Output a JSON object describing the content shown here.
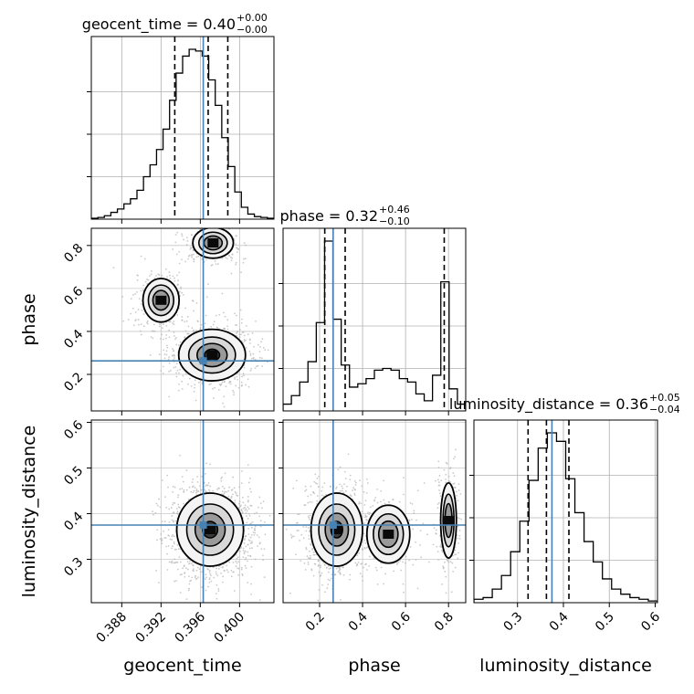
{
  "chart_data": {
    "type": "corner",
    "parameters": [
      "geocent_time",
      "phase",
      "luminosity_distance"
    ],
    "axis_labels": {
      "geocent_time": "geocent_time",
      "phase": "phase",
      "luminosity_distance": "luminosity_distance"
    },
    "ranges": {
      "geocent_time": [
        0.3849,
        0.4035
      ],
      "phase": [
        0.03,
        0.88
      ],
      "luminosity_distance": [
        0.205,
        0.605
      ]
    },
    "ticks": {
      "geocent_time": [
        "0.388",
        "0.392",
        "0.396",
        "0.400"
      ],
      "phase": [
        "0.2",
        "0.4",
        "0.6",
        "0.8"
      ],
      "luminosity_distance": [
        "0.3",
        "0.4",
        "0.5",
        "0.6"
      ]
    },
    "truths": {
      "geocent_time": 0.3963,
      "phase": 0.263,
      "luminosity_distance": 0.375
    },
    "titles": {
      "geocent_time": {
        "name": "geocent_time",
        "median": "0.40",
        "plus": "+0.00",
        "minus": "−0.00"
      },
      "phase": {
        "name": "phase",
        "median": "0.32",
        "plus": "+0.46",
        "minus": "−0.10"
      },
      "luminosity_distance": {
        "name": "luminosity_distance",
        "median": "0.36",
        "plus": "+0.05",
        "minus": "−0.04"
      }
    },
    "quantiles": {
      "geocent_time": [
        0.3934,
        0.3968,
        0.3988
      ],
      "phase": [
        0.224,
        0.319,
        0.78
      ],
      "luminosity_distance": [
        0.323,
        0.363,
        0.412
      ]
    },
    "histograms": {
      "geocent_time": [
        0.005,
        0.01,
        0.02,
        0.04,
        0.06,
        0.09,
        0.12,
        0.17,
        0.25,
        0.32,
        0.41,
        0.53,
        0.7,
        0.86,
        0.96,
        1.0,
        0.99,
        0.96,
        0.82,
        0.67,
        0.48,
        0.31,
        0.16,
        0.07,
        0.03,
        0.015,
        0.01,
        0.005
      ],
      "phase": [
        0.04,
        0.09,
        0.17,
        0.29,
        0.52,
        1.0,
        0.54,
        0.27,
        0.14,
        0.16,
        0.19,
        0.24,
        0.25,
        0.24,
        0.19,
        0.17,
        0.1,
        0.06,
        0.21,
        0.76,
        0.13,
        0.04
      ],
      "luminosity_distance": [
        0.02,
        0.03,
        0.08,
        0.16,
        0.3,
        0.48,
        0.72,
        0.91,
        1.0,
        0.95,
        0.73,
        0.53,
        0.36,
        0.24,
        0.14,
        0.08,
        0.05,
        0.03,
        0.02,
        0.01
      ]
    },
    "density_modes": {
      "geocent_time_phase": [
        {
          "x": 0.3973,
          "y": 0.812,
          "sx": 0.0011,
          "sy": 0.038,
          "w": 0.26
        },
        {
          "x": 0.392,
          "y": 0.545,
          "sx": 0.001,
          "sy": 0.055,
          "w": 0.2
        },
        {
          "x": 0.3972,
          "y": 0.29,
          "sx": 0.0017,
          "sy": 0.06,
          "w": 0.54
        }
      ],
      "geocent_time_luminosity_distance": [
        {
          "x": 0.397,
          "y": 0.365,
          "sx": 0.0017,
          "sy": 0.04,
          "w": 1.0
        }
      ],
      "phase_luminosity_distance": [
        {
          "x": 0.28,
          "y": 0.365,
          "sx": 0.06,
          "sy": 0.04,
          "w": 0.62
        },
        {
          "x": 0.52,
          "y": 0.355,
          "sx": 0.055,
          "sy": 0.035,
          "w": 0.18
        },
        {
          "x": 0.8,
          "y": 0.385,
          "sx": 0.02,
          "sy": 0.045,
          "w": 0.2
        }
      ]
    },
    "grid": true,
    "truth_color": "#4682b4",
    "line_color": "#000000",
    "point_color": "#b4b4b4"
  }
}
